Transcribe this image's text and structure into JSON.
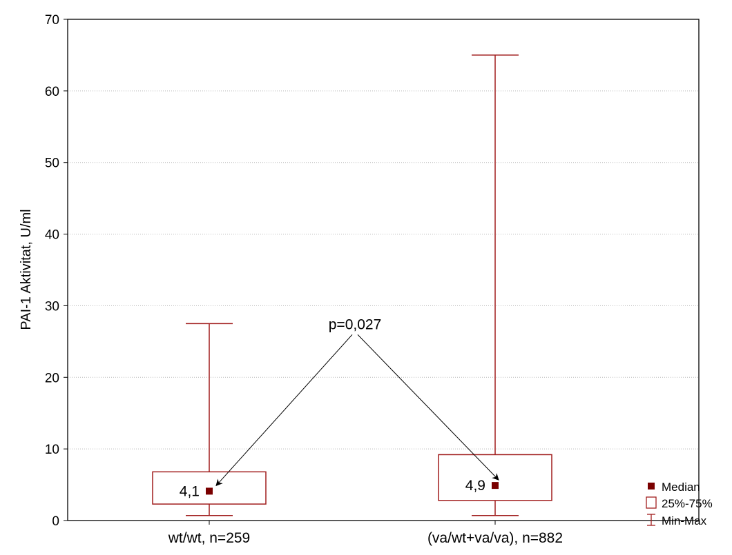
{
  "chart_data": {
    "type": "box",
    "ylabel": "PAI-1 Aktivitat, U/ml",
    "ylim": [
      0,
      70
    ],
    "yticks": [
      0,
      10,
      20,
      30,
      40,
      50,
      60,
      70
    ],
    "ytick_labels": [
      "0",
      "10",
      "20",
      "30",
      "40",
      "50",
      "60",
      "70"
    ],
    "grid": true,
    "categories": [
      "wt/wt, n=259",
      "(va/wt+va/va), n=882"
    ],
    "boxes": [
      {
        "min": 0.7,
        "q1": 2.3,
        "median": 4.1,
        "q3": 6.8,
        "max": 27.5,
        "median_label": "4,1"
      },
      {
        "min": 0.7,
        "q1": 2.8,
        "median": 4.9,
        "q3": 9.2,
        "max": 65.0,
        "median_label": "4,9"
      }
    ],
    "annotation": {
      "text": "p=0,027",
      "value": 27.5
    },
    "legend": {
      "position": "bottom-right",
      "entries": [
        "Median",
        "25%-75%",
        "Min-Max"
      ]
    },
    "colors": {
      "box": "#a01c1c",
      "median": "#7a0000",
      "grid": "#b8b8b8",
      "arrow": "#000000",
      "frame": "#000000"
    }
  }
}
